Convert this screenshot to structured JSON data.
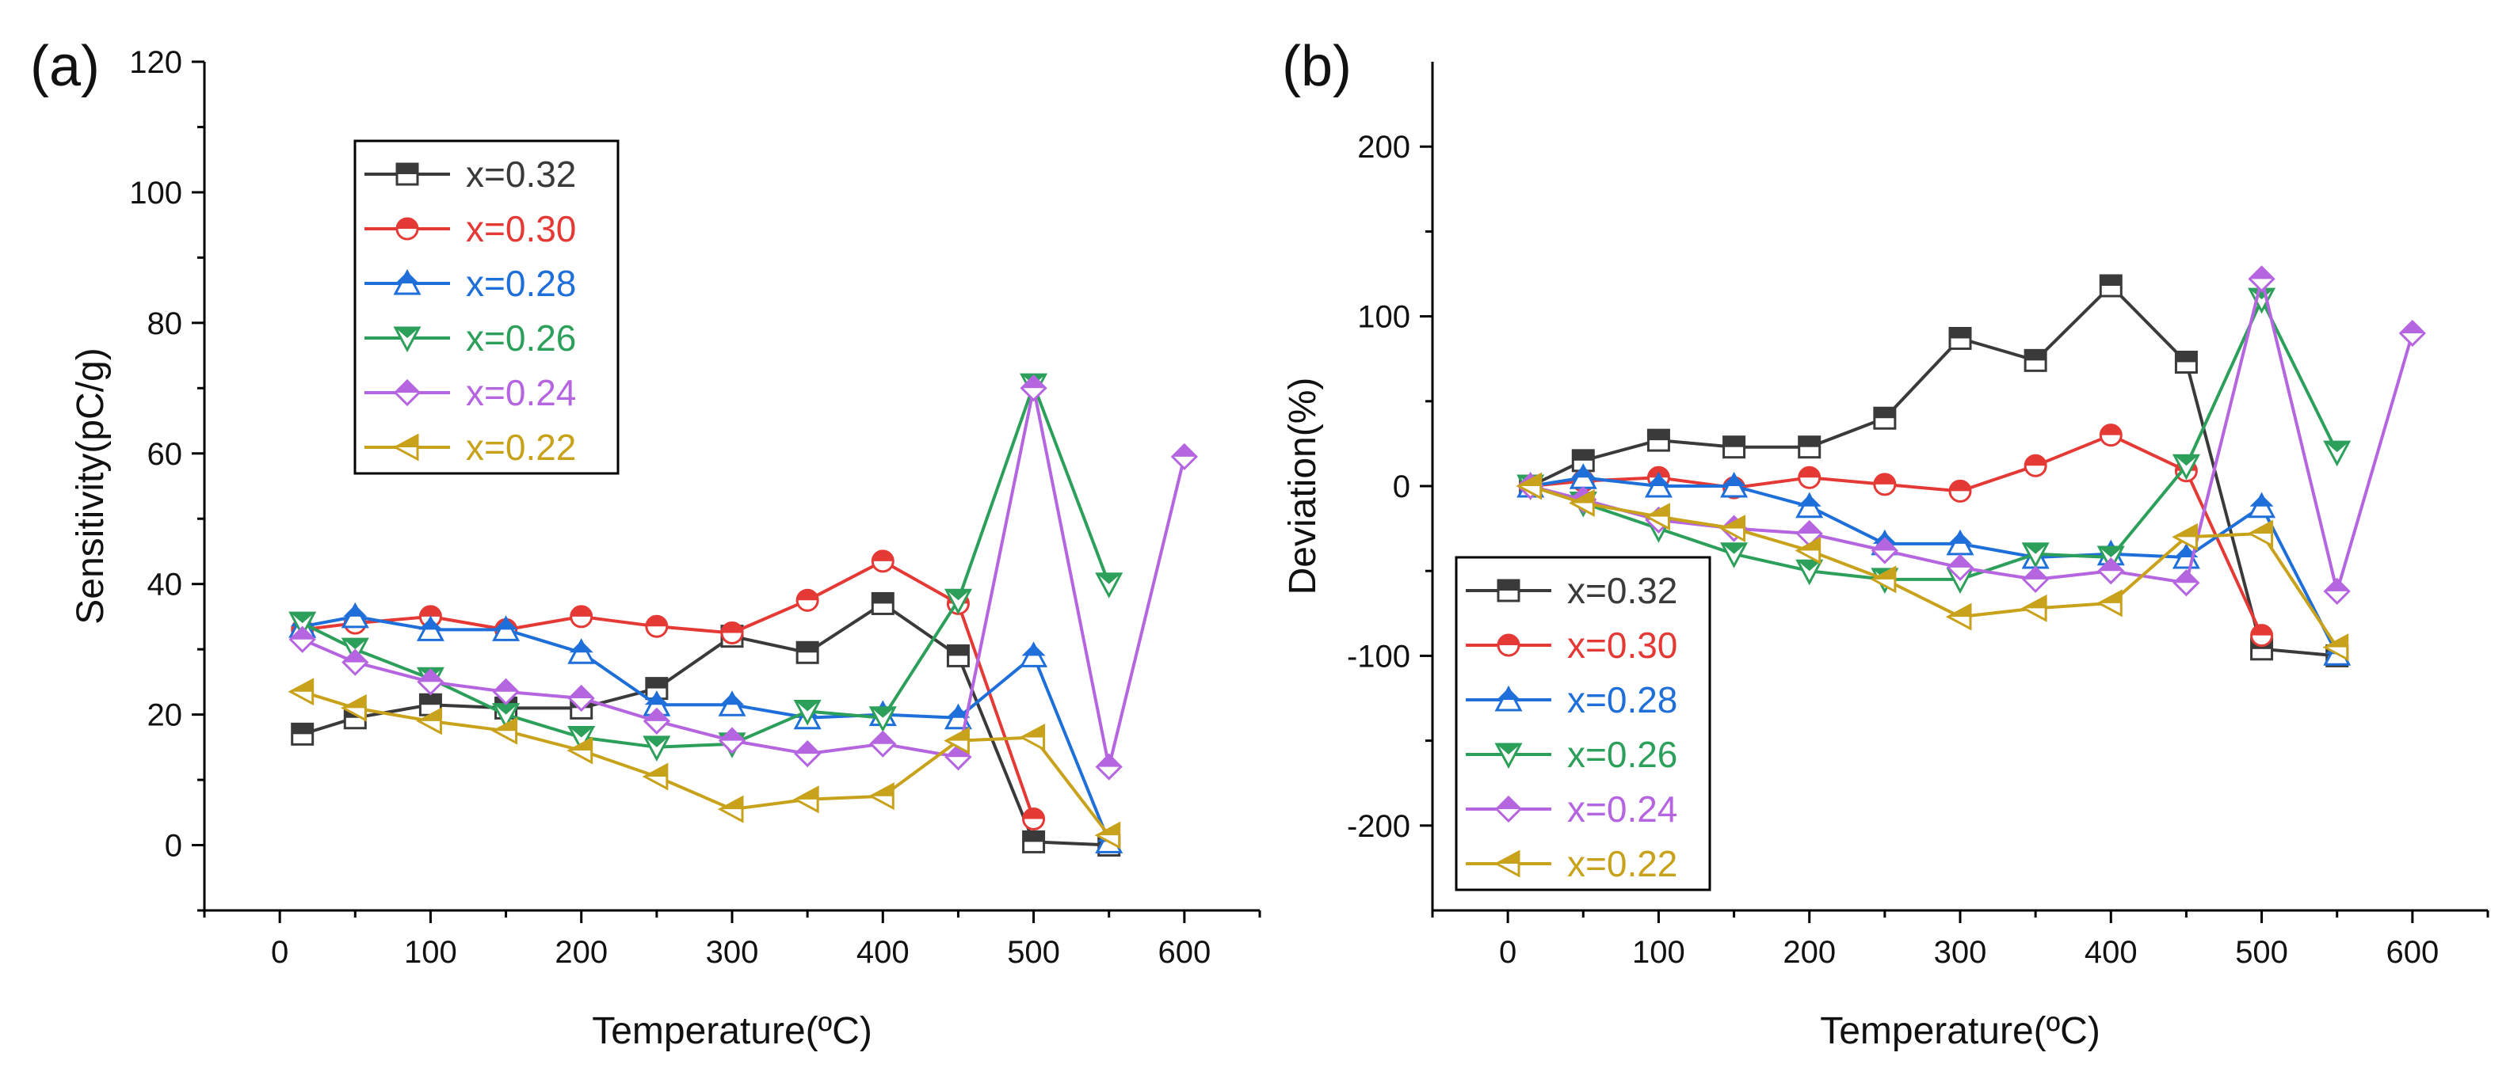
{
  "chart_data": [
    {
      "panel_label": "(a)",
      "type": "line",
      "xlabel": "Temperature(ºC)",
      "ylabel": "Sensitivity(pC/g)",
      "xlim": [
        -50,
        650
      ],
      "ylim": [
        -10,
        120
      ],
      "xticks": [
        0,
        100,
        200,
        300,
        400,
        500,
        600
      ],
      "yticks": [
        0,
        20,
        40,
        60,
        80,
        100,
        120
      ],
      "legend_position": "top-left",
      "series": [
        {
          "name": "x=0.32",
          "color": "#3a3a3a",
          "marker": "square",
          "x": [
            15,
            50,
            100,
            150,
            200,
            250,
            300,
            350,
            400,
            450,
            500,
            550
          ],
          "y": [
            17,
            19.5,
            21.5,
            21,
            21,
            24,
            32,
            29.5,
            37,
            29,
            0.5,
            0
          ]
        },
        {
          "name": "x=0.30",
          "color": "#e53935",
          "marker": "circle",
          "x": [
            15,
            50,
            100,
            150,
            200,
            250,
            300,
            350,
            400,
            450,
            500
          ],
          "y": [
            33,
            34,
            35,
            33,
            35,
            33.5,
            32.5,
            37.5,
            43.5,
            37,
            4
          ]
        },
        {
          "name": "x=0.28",
          "color": "#1e6fd9",
          "marker": "triangle-up",
          "x": [
            15,
            50,
            100,
            150,
            200,
            250,
            300,
            350,
            400,
            450,
            500,
            550
          ],
          "y": [
            33.5,
            35,
            33,
            33,
            29.5,
            21.5,
            21.5,
            19.5,
            20,
            19.5,
            29,
            0.5
          ]
        },
        {
          "name": "x=0.26",
          "color": "#2ca05a",
          "marker": "triangle-down",
          "x": [
            15,
            50,
            100,
            150,
            200,
            250,
            300,
            350,
            400,
            450,
            500,
            550
          ],
          "y": [
            34,
            30,
            25.5,
            20,
            16.5,
            15,
            15.5,
            20.5,
            19.5,
            37.5,
            70.5,
            40
          ]
        },
        {
          "name": "x=0.24",
          "color": "#b565e0",
          "marker": "diamond",
          "x": [
            15,
            50,
            100,
            150,
            200,
            250,
            300,
            350,
            400,
            450,
            500,
            550,
            600
          ],
          "y": [
            31.5,
            28,
            25,
            23.5,
            22.5,
            19,
            16,
            14,
            15.5,
            13.5,
            70,
            12,
            59.5
          ]
        },
        {
          "name": "x=0.22",
          "color": "#c9a21b",
          "marker": "triangle-left",
          "x": [
            15,
            50,
            100,
            150,
            200,
            250,
            300,
            350,
            400,
            450,
            500,
            550
          ],
          "y": [
            23.5,
            21,
            19,
            17.5,
            14.5,
            10.5,
            5.5,
            7,
            7.5,
            16,
            16.5,
            1.5
          ]
        }
      ]
    },
    {
      "panel_label": "(b)",
      "type": "line",
      "xlabel": "Temperature(ºC)",
      "ylabel": "Deviation(%)",
      "xlim": [
        -50,
        650
      ],
      "ylim": [
        -250,
        250
      ],
      "xticks": [
        0,
        100,
        200,
        300,
        400,
        500,
        600
      ],
      "yticks": [
        -200,
        -100,
        0,
        100,
        200
      ],
      "legend_position": "bottom-left",
      "series": [
        {
          "name": "x=0.32",
          "color": "#3a3a3a",
          "marker": "square",
          "x": [
            15,
            50,
            100,
            150,
            200,
            250,
            300,
            350,
            400,
            450,
            500,
            550
          ],
          "y": [
            0,
            15,
            27,
            23,
            23,
            40,
            87,
            74,
            118,
            73,
            -96,
            -100
          ]
        },
        {
          "name": "x=0.30",
          "color": "#e53935",
          "marker": "circle",
          "x": [
            15,
            50,
            100,
            150,
            200,
            250,
            300,
            350,
            400,
            450,
            500
          ],
          "y": [
            0,
            3,
            5,
            -1,
            5,
            1,
            -3,
            12,
            30,
            9,
            -88
          ]
        },
        {
          "name": "x=0.28",
          "color": "#1e6fd9",
          "marker": "triangle-up",
          "x": [
            15,
            50,
            100,
            150,
            200,
            250,
            300,
            350,
            400,
            450,
            500,
            550
          ],
          "y": [
            0,
            5,
            0,
            0,
            -12,
            -34,
            -34,
            -42,
            -40,
            -42,
            -12,
            -99
          ]
        },
        {
          "name": "x=0.26",
          "color": "#2ca05a",
          "marker": "triangle-down",
          "x": [
            15,
            50,
            100,
            150,
            200,
            250,
            300,
            350,
            400,
            450,
            500,
            550
          ],
          "y": [
            0,
            -10,
            -25,
            -40,
            -50,
            -55,
            -55,
            -40,
            -42,
            12,
            110,
            20
          ]
        },
        {
          "name": "x=0.24",
          "color": "#b565e0",
          "marker": "diamond",
          "x": [
            15,
            50,
            100,
            150,
            200,
            250,
            300,
            350,
            400,
            450,
            500,
            550,
            600
          ],
          "y": [
            0,
            -8,
            -20,
            -25,
            -28,
            -38,
            -48,
            -55,
            -50,
            -57,
            122,
            -62,
            90
          ]
        },
        {
          "name": "x=0.22",
          "color": "#c9a21b",
          "marker": "triangle-left",
          "x": [
            15,
            50,
            100,
            150,
            200,
            250,
            300,
            350,
            400,
            450,
            500,
            550
          ],
          "y": [
            0,
            -10,
            -18,
            -25,
            -38,
            -55,
            -77,
            -72,
            -69,
            -30,
            -28,
            -95
          ]
        }
      ]
    }
  ]
}
